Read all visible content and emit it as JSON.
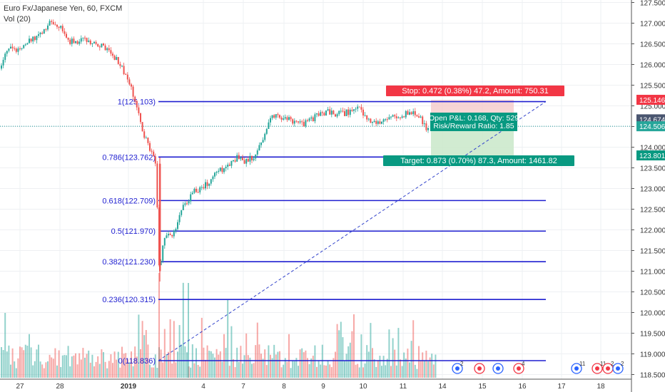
{
  "header": {
    "symbol": "Euro Fx/Japanese Yen, 60, FXCM",
    "volume_label": "Vol (20)"
  },
  "colors": {
    "up": "#26a69a",
    "down": "#ef5350",
    "fib_line": "#1f1fd0",
    "fib_label": "#1f1fd0",
    "trend_line": "#3344cc",
    "stop_bg": "#f4c7c7",
    "target_bg": "#c9e8c9",
    "stop_badge": "#f23645",
    "target_badge": "#089981",
    "price_badge": "#4a5670",
    "grid": "#eef0f3"
  },
  "position_tool": {
    "stop_label": "Stop: 0.472 (0.38%) 47.2, Amount: 750.31",
    "target_label": "Target: 0.873 (0.70%) 87.3, Amount: 1461.82",
    "open_pl_label": "Open P&L: 0.168, Qty: 529",
    "rr_label": "Risk/Reward Ratio: 1.85"
  },
  "price_axis_badges": [
    {
      "value": 125.146,
      "label": "125.146",
      "kind": "stop"
    },
    {
      "value": 124.674,
      "label": "124.674",
      "kind": "entry"
    },
    {
      "value": 124.506,
      "label": "124.506",
      "kind": "last"
    },
    {
      "value": 123.801,
      "label": "123.801",
      "kind": "target"
    }
  ],
  "event_markers": [
    "2",
    "",
    "",
    "4",
    "11",
    "11",
    "2",
    "2"
  ],
  "chart_data": {
    "type": "candlestick",
    "ylim": [
      118.35,
      127.6
    ],
    "y_ticks": [
      "127.500",
      "127.000",
      "126.500",
      "126.000",
      "125.500",
      "125.000",
      "124.500",
      "124.000",
      "123.500",
      "123.000",
      "122.500",
      "122.000",
      "121.500",
      "121.000",
      "120.500",
      "120.000",
      "119.500",
      "119.000",
      "118.500"
    ],
    "x_ticks": [
      "27",
      "28",
      "2019",
      "4",
      "7",
      "8",
      "9",
      "10",
      "11",
      "14",
      "15",
      "16",
      "17",
      "18"
    ],
    "fib_levels": [
      {
        "label": "1(125.103)",
        "value": 125.103
      },
      {
        "label": "0.786(123.762)",
        "value": 123.762
      },
      {
        "label": "0.618(122.709)",
        "value": 122.709
      },
      {
        "label": "0.5(121.970)",
        "value": 121.97
      },
      {
        "label": "0.382(121.230)",
        "value": 121.23
      },
      {
        "label": "0.236(120.315)",
        "value": 120.315
      },
      {
        "label": "0(118.836)",
        "value": 118.836
      }
    ],
    "position": {
      "entry": 124.674,
      "stop": 125.146,
      "target": 123.801
    },
    "price_path": [
      [
        0,
        125.9
      ],
      [
        15,
        126.4
      ],
      [
        30,
        126.3
      ],
      [
        45,
        126.6
      ],
      [
        58,
        126.7
      ],
      [
        72,
        127.0
      ],
      [
        85,
        126.9
      ],
      [
        100,
        126.55
      ],
      [
        118,
        126.6
      ],
      [
        140,
        126.5
      ],
      [
        155,
        126.3
      ],
      [
        168,
        126.05
      ],
      [
        178,
        125.75
      ],
      [
        188,
        125.3
      ],
      [
        196,
        124.75
      ],
      [
        203,
        124.3
      ],
      [
        210,
        124.0
      ],
      [
        217,
        123.75
      ],
      [
        221,
        123.55
      ],
      [
        223,
        121.6
      ],
      [
        225,
        120.95
      ],
      [
        230,
        121.6
      ],
      [
        236,
        121.95
      ],
      [
        242,
        121.75
      ],
      [
        250,
        122.2
      ],
      [
        260,
        122.6
      ],
      [
        272,
        122.9
      ],
      [
        285,
        123.0
      ],
      [
        296,
        123.2
      ],
      [
        308,
        123.4
      ],
      [
        320,
        123.55
      ],
      [
        335,
        123.75
      ],
      [
        348,
        123.65
      ],
      [
        360,
        123.85
      ],
      [
        370,
        124.2
      ],
      [
        382,
        124.7
      ],
      [
        395,
        124.75
      ],
      [
        410,
        124.65
      ],
      [
        425,
        124.55
      ],
      [
        440,
        124.7
      ],
      [
        458,
        124.85
      ],
      [
        475,
        124.8
      ],
      [
        492,
        124.85
      ],
      [
        505,
        124.95
      ],
      [
        520,
        124.65
      ],
      [
        540,
        124.6
      ],
      [
        555,
        124.75
      ],
      [
        570,
        124.8
      ],
      [
        582,
        124.85
      ],
      [
        590,
        124.7
      ],
      [
        598,
        124.45
      ]
    ]
  }
}
